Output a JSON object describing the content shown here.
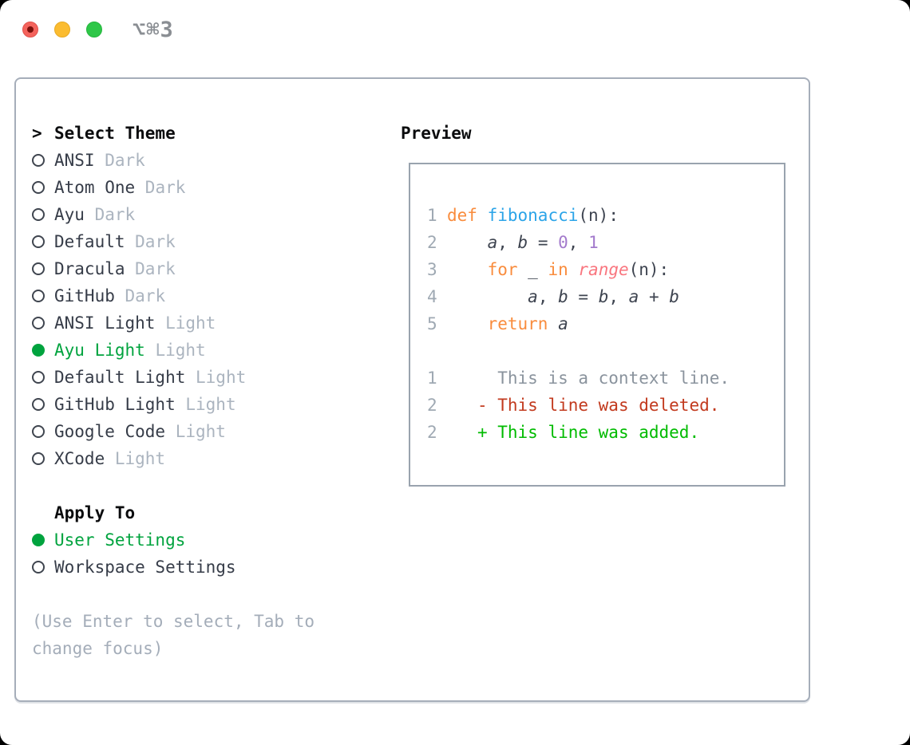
{
  "titlebar": {
    "hotkey_label": "⌥⌘3",
    "buttons": [
      "close",
      "minimize",
      "zoom"
    ]
  },
  "colors": {
    "accent_green": "#00A33E",
    "added_green": "#00BB00",
    "deleted_red": "#C23A1E",
    "keyword_orange": "#F98C3D",
    "function_blue": "#2BA4E8",
    "builtin_salmon": "#F9767F",
    "number_purple": "#A37ACC",
    "muted_gray": "#ABB4BF",
    "border_gray": "#A6AEBA"
  },
  "theme_picker": {
    "header": {
      "marker": ">",
      "label": "Select Theme"
    },
    "themes": [
      {
        "name": "ANSI",
        "variant": "Dark",
        "selected": false
      },
      {
        "name": "Atom One",
        "variant": "Dark",
        "selected": false
      },
      {
        "name": "Ayu",
        "variant": "Dark",
        "selected": false
      },
      {
        "name": "Default",
        "variant": "Dark",
        "selected": false
      },
      {
        "name": "Dracula",
        "variant": "Dark",
        "selected": false
      },
      {
        "name": "GitHub",
        "variant": "Dark",
        "selected": false
      },
      {
        "name": "ANSI Light",
        "variant": "Light",
        "selected": false
      },
      {
        "name": "Ayu Light",
        "variant": "Light",
        "selected": true
      },
      {
        "name": "Default Light",
        "variant": "Light",
        "selected": false
      },
      {
        "name": "GitHub Light",
        "variant": "Light",
        "selected": false
      },
      {
        "name": "Google Code",
        "variant": "Light",
        "selected": false
      },
      {
        "name": "XCode",
        "variant": "Light",
        "selected": false
      }
    ],
    "apply_to": {
      "label": "Apply To",
      "options": [
        {
          "label": "User Settings",
          "selected": true
        },
        {
          "label": "Workspace Settings",
          "selected": false
        }
      ]
    },
    "hint_lines": [
      "(Use Enter to select, Tab to",
      "change focus)"
    ]
  },
  "preview": {
    "title": "Preview",
    "lines": [
      {
        "num": "1",
        "tokens": [
          {
            "t": "def",
            "c": "kw"
          },
          {
            "t": " ",
            "c": "plain"
          },
          {
            "t": "fibonacci",
            "c": "fn"
          },
          {
            "t": "(n):",
            "c": "plain"
          }
        ]
      },
      {
        "num": "2",
        "tokens": [
          {
            "t": "    ",
            "c": "plain"
          },
          {
            "t": "a",
            "c": "var"
          },
          {
            "t": ", ",
            "c": "plain"
          },
          {
            "t": "b",
            "c": "var"
          },
          {
            "t": " = ",
            "c": "plain"
          },
          {
            "t": "0",
            "c": "num"
          },
          {
            "t": ", ",
            "c": "plain"
          },
          {
            "t": "1",
            "c": "num"
          }
        ]
      },
      {
        "num": "3",
        "tokens": [
          {
            "t": "    ",
            "c": "plain"
          },
          {
            "t": "for",
            "c": "kw"
          },
          {
            "t": " _ ",
            "c": "plain"
          },
          {
            "t": "in",
            "c": "kw"
          },
          {
            "t": " ",
            "c": "plain"
          },
          {
            "t": "range",
            "c": "call"
          },
          {
            "t": "(n):",
            "c": "plain"
          }
        ]
      },
      {
        "num": "4",
        "tokens": [
          {
            "t": "        ",
            "c": "plain"
          },
          {
            "t": "a",
            "c": "var"
          },
          {
            "t": ", ",
            "c": "plain"
          },
          {
            "t": "b",
            "c": "var"
          },
          {
            "t": " = ",
            "c": "plain"
          },
          {
            "t": "b",
            "c": "var"
          },
          {
            "t": ", ",
            "c": "plain"
          },
          {
            "t": "a",
            "c": "var"
          },
          {
            "t": " + ",
            "c": "plain"
          },
          {
            "t": "b",
            "c": "var"
          }
        ]
      },
      {
        "num": "5",
        "tokens": [
          {
            "t": "    ",
            "c": "plain"
          },
          {
            "t": "return",
            "c": "kw"
          },
          {
            "t": " ",
            "c": "plain"
          },
          {
            "t": "a",
            "c": "var"
          }
        ]
      },
      {
        "num": "",
        "tokens": []
      },
      {
        "num": "1",
        "tokens": [
          {
            "t": "     This is a context line.",
            "c": "ctx"
          }
        ]
      },
      {
        "num": "2",
        "tokens": [
          {
            "t": "   ",
            "c": "plain"
          },
          {
            "t": "- This line was deleted.",
            "c": "del"
          }
        ]
      },
      {
        "num": "2",
        "tokens": [
          {
            "t": "   ",
            "c": "plain"
          },
          {
            "t": "+ This line was added.",
            "c": "add"
          }
        ]
      }
    ]
  }
}
